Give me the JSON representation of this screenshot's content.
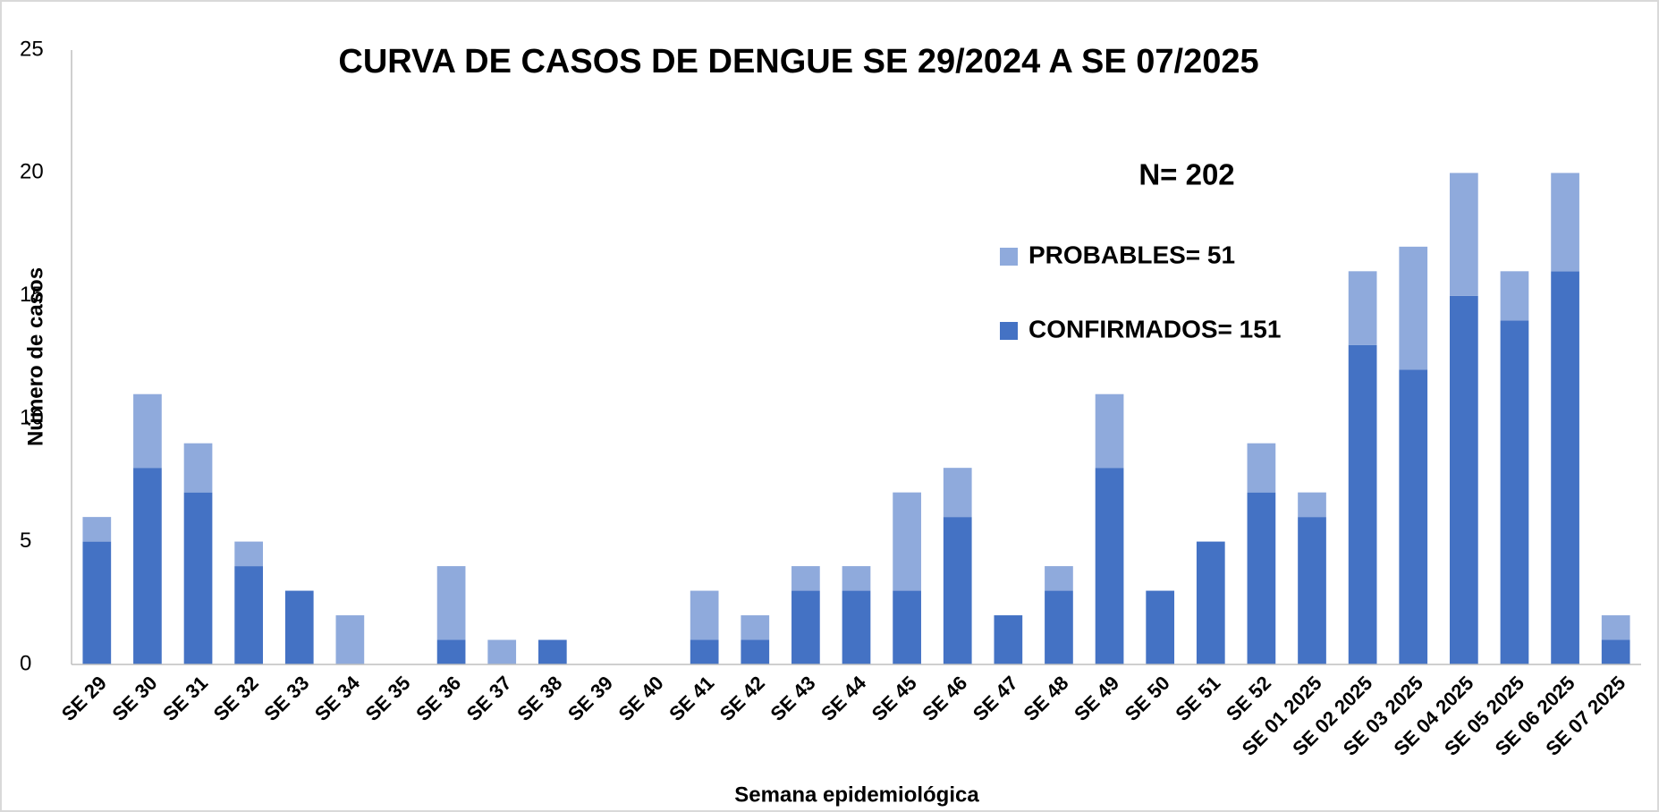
{
  "chart_data": {
    "type": "stacked_bar",
    "title": "CURVA DE CASOS DE DENGUE SE 29/2024 A SE 07/2025",
    "annotation": "N= 202",
    "x_label": "Semana epidemiológica",
    "y_label": "Número de casos",
    "categories": [
      "SE 29",
      "SE 30",
      "SE 31",
      "SE 32",
      "SE 33",
      "SE 34",
      "SE 35",
      "SE 36",
      "SE 37",
      "SE 38",
      "SE 39",
      "SE 40",
      "SE 41",
      "SE 42",
      "SE 43",
      "SE 44",
      "SE 45",
      "SE 46",
      "SE 47",
      "SE 48",
      "SE 49",
      "SE 50",
      "SE 51",
      "SE 52",
      "SE 01 2025",
      "SE 02 2025",
      "SE 03 2025",
      "SE 04 2025",
      "SE 05 2025",
      "SE 06 2025",
      "SE 07 2025"
    ],
    "series": [
      {
        "name": "CONFIRMADOS= 151",
        "color": "#4472c4",
        "values": [
          5,
          8,
          7,
          4,
          3,
          0,
          0,
          1,
          0,
          1,
          0,
          0,
          1,
          1,
          3,
          3,
          3,
          6,
          2,
          3,
          8,
          3,
          5,
          7,
          6,
          13,
          12,
          15,
          14,
          16,
          1
        ]
      },
      {
        "name": "PROBABLES= 51",
        "color": "#8faadc",
        "values": [
          1,
          3,
          2,
          1,
          0,
          2,
          0,
          3,
          1,
          0,
          0,
          0,
          2,
          1,
          1,
          1,
          4,
          2,
          0,
          1,
          3,
          0,
          0,
          2,
          1,
          3,
          5,
          5,
          2,
          4,
          1
        ]
      }
    ],
    "ylim": [
      0,
      25
    ],
    "yticks": [
      0,
      5,
      10,
      15,
      20,
      25
    ],
    "grid": false
  }
}
